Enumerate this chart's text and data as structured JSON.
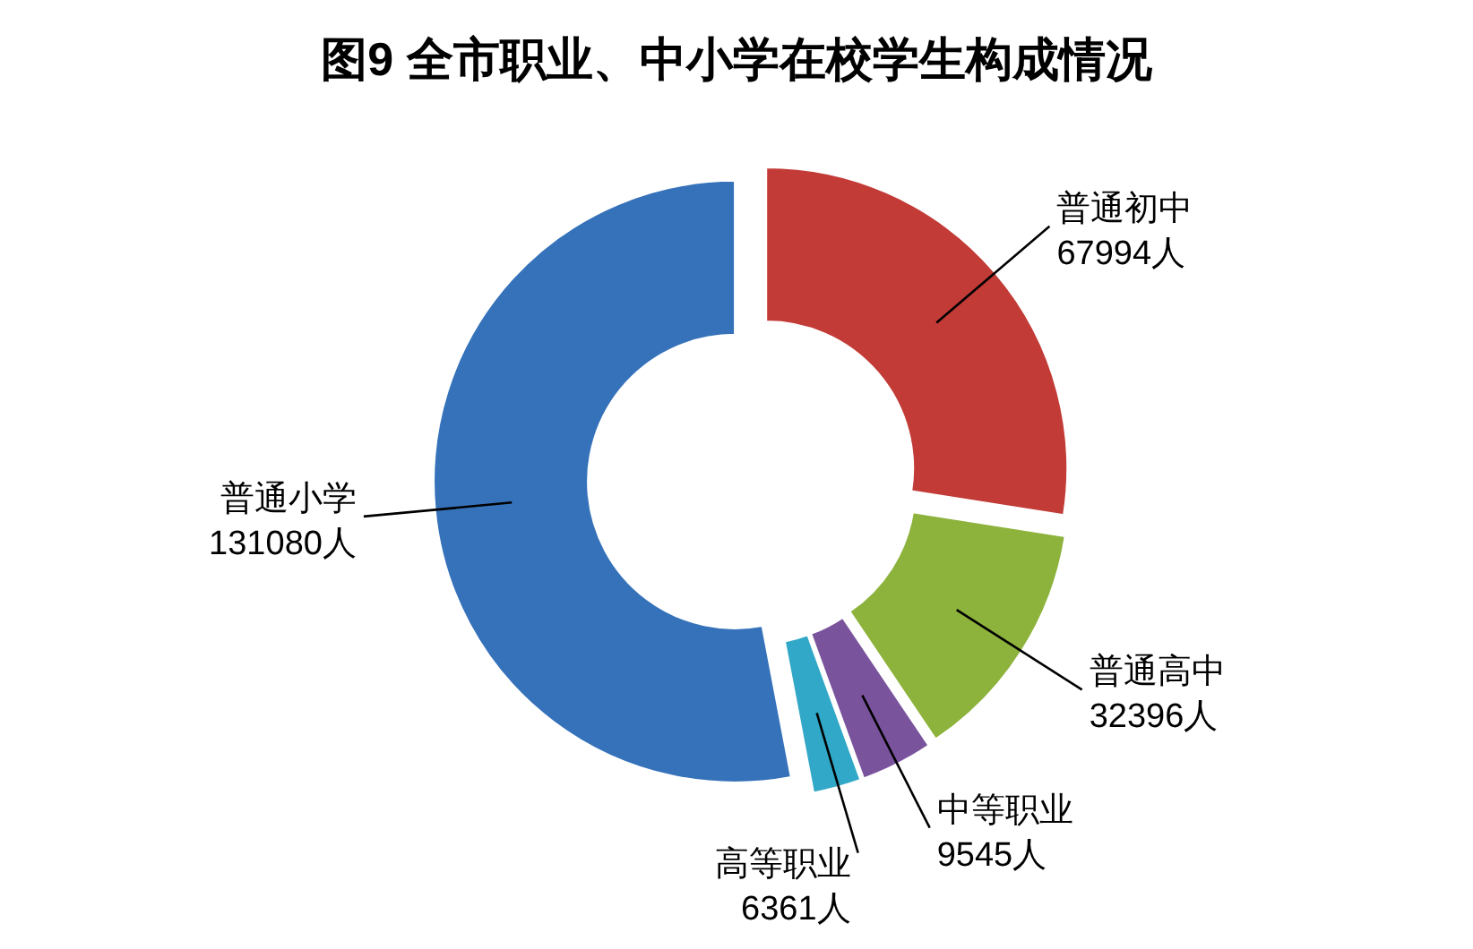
{
  "chart_data": {
    "type": "donut",
    "title": "图9  全市职业、中小学在校学生构成情况",
    "categories": [
      "普通初中",
      "普通高中",
      "中等职业",
      "高等职业",
      "普通小学"
    ],
    "values": [
      67994,
      32396,
      9545,
      6361,
      131080
    ],
    "value_labels": [
      "67994人",
      "32396人",
      "9545人",
      "6361人",
      "131080人"
    ],
    "colors": [
      "#c23b36",
      "#8db33d",
      "#7a539d",
      "#31a8c8",
      "#3572ba"
    ]
  }
}
